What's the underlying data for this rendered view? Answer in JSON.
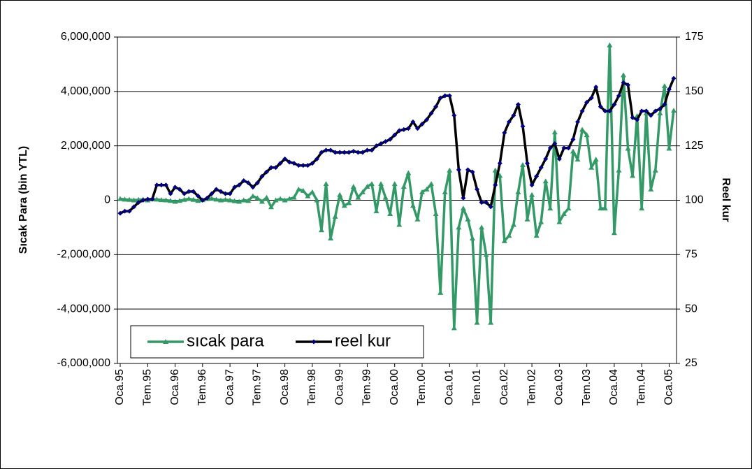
{
  "chart_data": {
    "type": "line",
    "ylabel": "Sıcak Para (bin YTL)",
    "y2label": "Reel kur",
    "categories": [
      "Oca.95",
      null,
      null,
      null,
      null,
      null,
      "Tem.95",
      null,
      null,
      null,
      null,
      null,
      "Oca.96",
      null,
      null,
      null,
      null,
      null,
      "Tem.96",
      null,
      null,
      null,
      null,
      null,
      "Oca.97",
      null,
      null,
      null,
      null,
      null,
      "Tem.97",
      null,
      null,
      null,
      null,
      null,
      "Oca.98",
      null,
      null,
      null,
      null,
      null,
      "Tem.98",
      null,
      null,
      null,
      null,
      null,
      "Oca.99",
      null,
      null,
      null,
      null,
      null,
      "Tem.99",
      null,
      null,
      null,
      null,
      null,
      "Oca.00",
      null,
      null,
      null,
      null,
      null,
      "Tem.00",
      null,
      null,
      null,
      null,
      null,
      "Oca.01",
      null,
      null,
      null,
      null,
      null,
      "Tem.01",
      null,
      null,
      null,
      null,
      null,
      "Oca.02",
      null,
      null,
      null,
      null,
      null,
      "Tem.02",
      null,
      null,
      null,
      null,
      null,
      "Oca.03",
      null,
      null,
      null,
      null,
      null,
      "Tem.03",
      null,
      null,
      null,
      null,
      null,
      "Oca.04",
      null,
      null,
      null,
      null,
      null,
      "Tem.04",
      null,
      null,
      null,
      null,
      null,
      "Oca.05",
      null
    ],
    "series": [
      {
        "name": "sıcak para",
        "color": "#339966",
        "marker": "triangle",
        "values": [
          50000,
          30000,
          20000,
          0,
          20000,
          30000,
          0,
          40000,
          30000,
          10000,
          0,
          -20000,
          -50000,
          -20000,
          20000,
          50000,
          20000,
          -20000,
          10000,
          50000,
          60000,
          30000,
          0,
          20000,
          0,
          -30000,
          -50000,
          0,
          -20000,
          150000,
          80000,
          -50000,
          100000,
          -250000,
          0,
          50000,
          0,
          50000,
          100000,
          400000,
          350000,
          150000,
          300000,
          0,
          -1100000,
          600000,
          -1400000,
          -600000,
          200000,
          -200000,
          -100000,
          500000,
          100000,
          300000,
          500000,
          600000,
          -400000,
          600000,
          100000,
          -500000,
          600000,
          -900000,
          500000,
          1000000,
          -200000,
          -700000,
          300000,
          400000,
          600000,
          -500000,
          -3400000,
          300000,
          1100000,
          -4700000,
          -1000000,
          -300000,
          -700000,
          -1400000,
          -4500000,
          -1000000,
          -2000000,
          -4500000,
          1100000,
          900000,
          -1500000,
          -1300000,
          -900000,
          300000,
          1300000,
          -700000,
          200000,
          -1300000,
          -800000,
          700000,
          -300000,
          2500000,
          -800000,
          -500000,
          -300000,
          1800000,
          1500000,
          2600000,
          2400000,
          1200000,
          1500000,
          -300000,
          -300000,
          5700000,
          -1200000,
          1100000,
          4600000,
          1900000,
          900000,
          3100000,
          -300000,
          3200000,
          400000,
          1100000,
          3200000,
          4200000,
          1900000,
          3300000
        ]
      },
      {
        "name": "reel kur",
        "color": "#000000",
        "marker_color": "#000080",
        "marker": "diamond",
        "axis": "y2",
        "values": [
          94,
          95,
          95,
          97,
          99,
          100,
          100.5,
          100.5,
          107,
          107,
          107,
          103,
          106,
          105,
          103,
          104,
          104,
          102,
          100,
          101,
          103,
          105,
          104,
          103,
          103,
          106,
          107,
          109,
          108,
          106,
          108,
          111,
          113,
          115,
          115,
          117,
          119,
          117.5,
          117,
          116,
          116,
          116,
          117,
          119,
          122,
          123,
          123,
          122,
          122,
          122,
          122,
          122.5,
          122,
          122,
          123,
          123,
          125,
          126,
          127,
          128,
          130,
          132,
          132.5,
          133,
          136,
          133,
          135,
          137,
          140,
          143,
          147,
          148,
          148,
          139,
          114,
          101,
          114,
          113,
          105,
          99,
          99,
          97,
          107,
          117,
          131,
          136,
          139,
          144,
          134,
          117,
          107,
          111,
          115,
          119,
          124,
          126,
          119,
          124,
          124,
          128,
          136,
          141,
          145,
          147,
          152,
          143,
          141,
          141,
          144,
          148,
          154,
          153,
          138,
          137,
          141,
          141,
          139,
          141,
          142,
          144,
          151,
          156
        ]
      }
    ],
    "ylim": [
      -6000000,
      6000000
    ],
    "yticks": [
      {
        "value": -6000000,
        "label": "-6,000,000"
      },
      {
        "value": -4000000,
        "label": "-4,000,000"
      },
      {
        "value": -2000000,
        "label": "-2,000,000"
      },
      {
        "value": 0,
        "label": "0"
      },
      {
        "value": 2000000,
        "label": "2,000,000"
      },
      {
        "value": 4000000,
        "label": "4,000,000"
      },
      {
        "value": 6000000,
        "label": "6,000,000"
      }
    ],
    "y2lim": [
      25,
      175
    ],
    "y2ticks": [
      25,
      50,
      75,
      100,
      125,
      150,
      175
    ],
    "grid": true,
    "legend": "lower left"
  }
}
